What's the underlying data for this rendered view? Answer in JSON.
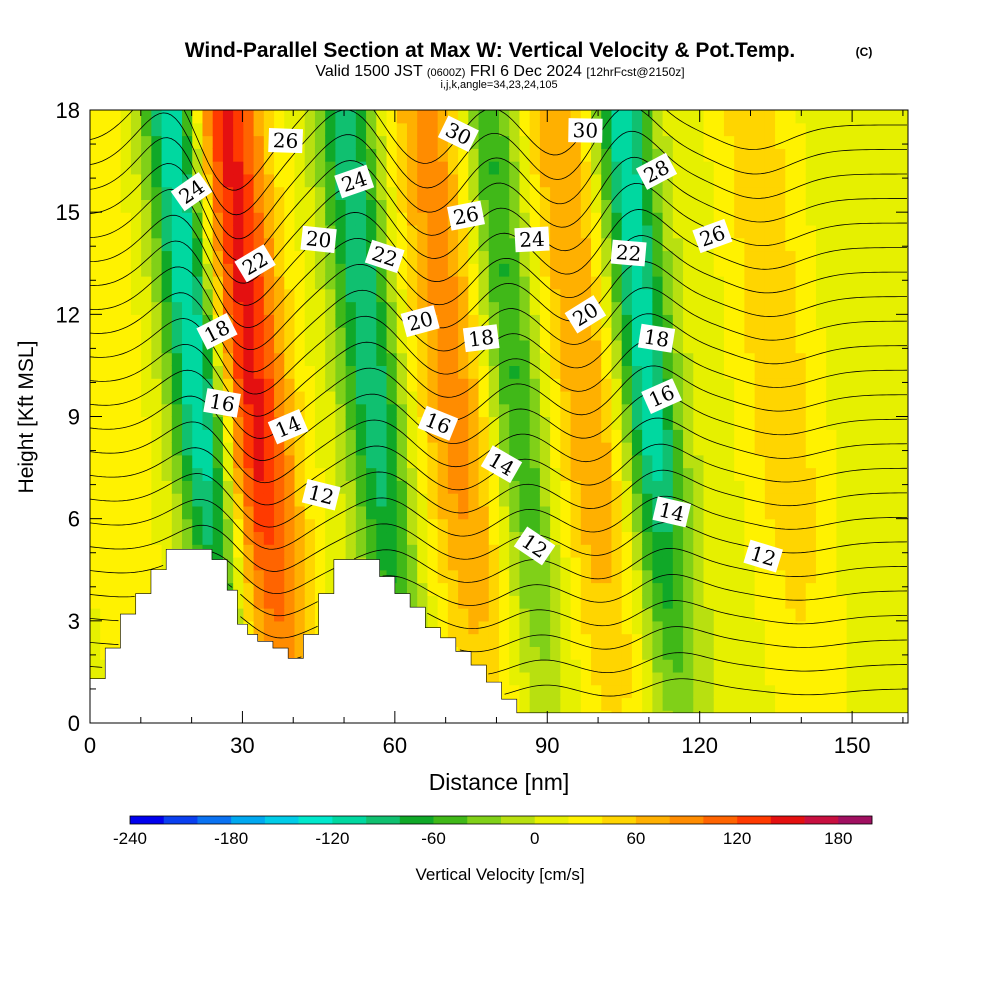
{
  "header": {
    "title": "Wind-Parallel Section at Max W: Vertical Velocity & Pot.Temp.",
    "title_mark": "(C)",
    "valid_prefix": "Valid 1500 JST",
    "valid_utc": "(0600Z)",
    "valid_date": "FRI 6 Dec 2024",
    "forecast": "[12hrFcst@2150z]",
    "indices": "i,j,k,angle=34,23,24,105"
  },
  "chart_data": {
    "type": "heatmap",
    "xlabel": "Distance [nm]",
    "ylabel": "Height [Kft MSL]",
    "xlim": [
      0,
      161
    ],
    "ylim": [
      0,
      18
    ],
    "xticks": [
      "0",
      "30",
      "60",
      "90",
      "120",
      "150"
    ],
    "yticks": [
      "0",
      "3",
      "6",
      "9",
      "12",
      "15",
      "18"
    ],
    "colorbar": {
      "label": "Vertical Velocity [cm/s]",
      "range": [
        -240,
        200
      ],
      "step": 20,
      "ticks": [
        "-240",
        "-180",
        "-120",
        "-60",
        "0",
        "60",
        "120",
        "180"
      ],
      "colors": [
        "#0000ee",
        "#0a3ff0",
        "#0a72f2",
        "#00a8f0",
        "#00cce8",
        "#00e8cc",
        "#00d8a0",
        "#10c070",
        "#10a828",
        "#40b818",
        "#80d018",
        "#b8e010",
        "#e6f000",
        "#fff200",
        "#ffd500",
        "#ffb000",
        "#ff8c00",
        "#ff6400",
        "#ff3a00",
        "#e41010",
        "#c81040",
        "#a01060"
      ]
    },
    "updrafts": [
      {
        "x": 34,
        "peak": 140
      },
      {
        "x": 74,
        "peak": 80
      },
      {
        "x": 100,
        "peak": 70
      },
      {
        "x": 138,
        "peak": 45
      },
      {
        "x": 6,
        "peak": 30
      }
    ],
    "downdrafts": [
      {
        "x": 24,
        "peak": -150
      },
      {
        "x": 58,
        "peak": -110
      },
      {
        "x": 86,
        "peak": -80
      },
      {
        "x": 112,
        "peak": -130
      }
    ],
    "isentropes": [
      8,
      9,
      10,
      11,
      12,
      13,
      14,
      15,
      16,
      17,
      18,
      19,
      20,
      21,
      22,
      23,
      24,
      25,
      26,
      27,
      28,
      29,
      30,
      31
    ],
    "contour_labels": [
      {
        "text": "24",
        "x": 20,
        "y": 15.6
      },
      {
        "text": "26",
        "x": 38.5,
        "y": 17.1
      },
      {
        "text": "22",
        "x": 32.5,
        "y": 13.5
      },
      {
        "text": "20",
        "x": 45,
        "y": 14.2
      },
      {
        "text": "18",
        "x": 25,
        "y": 11.5
      },
      {
        "text": "16",
        "x": 26,
        "y": 9.4
      },
      {
        "text": "14",
        "x": 39,
        "y": 8.7
      },
      {
        "text": "12",
        "x": 45.5,
        "y": 6.7
      },
      {
        "text": "24",
        "x": 52,
        "y": 15.9
      },
      {
        "text": "22",
        "x": 58,
        "y": 13.7
      },
      {
        "text": "20",
        "x": 65,
        "y": 11.8
      },
      {
        "text": "16",
        "x": 68.5,
        "y": 8.8
      },
      {
        "text": "26",
        "x": 74,
        "y": 14.9
      },
      {
        "text": "30",
        "x": 72.5,
        "y": 17.3
      },
      {
        "text": "18",
        "x": 77,
        "y": 11.3
      },
      {
        "text": "14",
        "x": 81,
        "y": 7.6
      },
      {
        "text": "24",
        "x": 87,
        "y": 14.2
      },
      {
        "text": "12",
        "x": 87.5,
        "y": 5.2
      },
      {
        "text": "30",
        "x": 97.5,
        "y": 17.4
      },
      {
        "text": "20",
        "x": 97.5,
        "y": 12
      },
      {
        "text": "22",
        "x": 106,
        "y": 13.8
      },
      {
        "text": "28",
        "x": 111.5,
        "y": 16.2
      },
      {
        "text": "18",
        "x": 111.5,
        "y": 11.3
      },
      {
        "text": "16",
        "x": 112.5,
        "y": 9.6
      },
      {
        "text": "14",
        "x": 114.5,
        "y": 6.2
      },
      {
        "text": "26",
        "x": 122.5,
        "y": 14.3
      },
      {
        "text": "12",
        "x": 132.5,
        "y": 4.9
      }
    ],
    "terrain": {
      "x": [
        0,
        3,
        3,
        6,
        6,
        9,
        9,
        12,
        12,
        15,
        15,
        18,
        18,
        24,
        24,
        27,
        27,
        29,
        29,
        31,
        31,
        33,
        33,
        36,
        36,
        39,
        39,
        42,
        42,
        45,
        45,
        48,
        48,
        51,
        51,
        57,
        57,
        60,
        60,
        63,
        63,
        66,
        66,
        69,
        69,
        72,
        72,
        75,
        75,
        78,
        78,
        81,
        81,
        84,
        84,
        87,
        87,
        161
      ],
      "h": [
        1.3,
        1.3,
        2.2,
        2.2,
        3.2,
        3.2,
        3.8,
        3.8,
        4.5,
        4.5,
        5.1,
        5.1,
        5.1,
        5.1,
        4.8,
        4.8,
        3.9,
        3.9,
        2.9,
        2.9,
        2.6,
        2.6,
        2.4,
        2.4,
        2.2,
        2.2,
        1.9,
        1.9,
        2.6,
        2.6,
        3.8,
        3.8,
        4.8,
        4.8,
        4.8,
        4.8,
        4.3,
        4.3,
        3.8,
        3.8,
        3.4,
        3.4,
        2.8,
        2.8,
        2.5,
        2.5,
        2.1,
        2.1,
        1.7,
        1.7,
        1.2,
        1.2,
        0.7,
        0.7,
        0.3,
        0.3,
        0.3,
        0.3
      ]
    }
  }
}
